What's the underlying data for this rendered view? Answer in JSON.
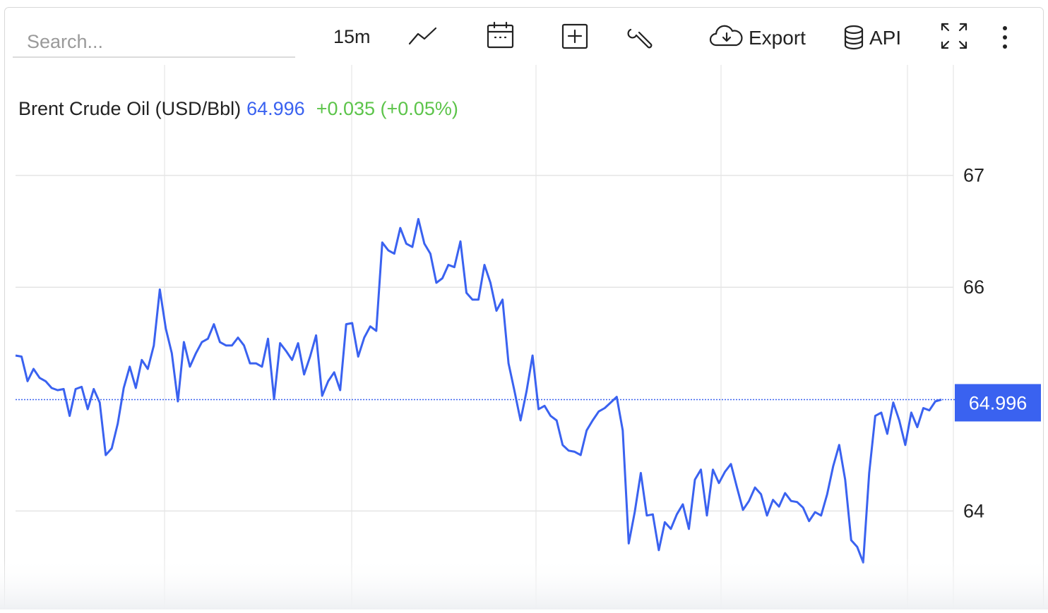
{
  "toolbar": {
    "search_placeholder": "Search...",
    "interval": "15m",
    "export": "Export",
    "api": "API"
  },
  "chart_data": {
    "type": "line",
    "title": "Brent Crude Oil (USD/Bbl)",
    "last_price": 64.996,
    "change": "+0.035 (+0.05%)",
    "color": "#3a62f0",
    "change_color": "#5cc44a",
    "values": [
      65.39,
      65.38,
      65.16,
      65.27,
      65.19,
      65.16,
      65.1,
      65.08,
      65.09,
      64.85,
      65.09,
      65.11,
      64.91,
      65.09,
      64.97,
      64.5,
      64.56,
      64.78,
      65.1,
      65.29,
      65.1,
      65.35,
      65.27,
      65.48,
      65.98,
      65.63,
      65.41,
      64.98,
      65.51,
      65.29,
      65.41,
      65.51,
      65.54,
      65.67,
      65.51,
      65.48,
      65.48,
      65.55,
      65.48,
      65.32,
      65.32,
      65.29,
      65.54,
      65.0,
      65.5,
      65.43,
      65.35,
      65.5,
      65.22,
      65.38,
      65.57,
      65.03,
      65.16,
      65.24,
      65.08,
      65.67,
      65.68,
      65.38,
      65.55,
      65.65,
      65.61,
      66.4,
      66.33,
      66.3,
      66.53,
      66.39,
      66.36,
      66.61,
      66.39,
      66.3,
      66.04,
      66.08,
      66.2,
      66.18,
      66.41,
      65.95,
      65.89,
      65.89,
      66.2,
      66.04,
      65.79,
      65.89,
      65.32,
      65.07,
      64.81,
      65.07,
      65.39,
      64.91,
      64.94,
      64.85,
      64.81,
      64.59,
      64.54,
      64.53,
      64.5,
      64.72,
      64.81,
      64.89,
      64.92,
      64.97,
      65.02,
      64.72,
      63.71,
      63.99,
      64.34,
      63.96,
      63.97,
      63.65,
      63.9,
      63.84,
      63.97,
      64.06,
      63.84,
      64.28,
      64.37,
      63.96,
      64.37,
      64.25,
      64.35,
      64.42,
      64.21,
      64.01,
      64.09,
      64.21,
      64.15,
      63.96,
      64.1,
      64.04,
      64.16,
      64.09,
      64.08,
      64.03,
      63.91,
      63.99,
      63.96,
      64.15,
      64.4,
      64.59,
      64.28,
      63.74,
      63.68,
      63.54,
      64.34,
      64.85,
      64.88,
      64.69,
      64.97,
      64.81,
      64.59,
      64.88,
      64.75,
      64.92,
      64.9,
      64.98,
      64.996
    ],
    "ylim": [
      63.12,
      68.0
    ],
    "yticks": [
      64,
      66,
      67
    ],
    "grid": true
  }
}
